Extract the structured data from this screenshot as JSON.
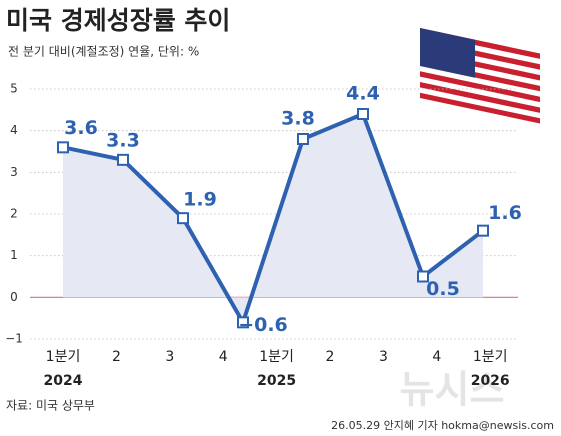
{
  "chart_data": {
    "type": "line",
    "title": "미국 경제성장률 추이",
    "subtitle": "전 분기 대비(계절조정) 연율, 단위: %",
    "x_axis_labels": [
      "1분기",
      "2",
      "3",
      "4",
      "1분기",
      "2",
      "3",
      "4",
      "1분기"
    ],
    "year_labels": [
      "2024",
      "2025",
      "2026"
    ],
    "values": [
      3.6,
      3.3,
      1.9,
      -0.6,
      3.8,
      4.4,
      0.5,
      1.6
    ],
    "value_labels": [
      "3.6",
      "3.3",
      "1.9",
      "−0.6",
      "3.8",
      "4.4",
      "0.5",
      "1.6"
    ],
    "color": "#2e62b0",
    "ylim": [
      -1,
      5
    ],
    "yticks": [
      {
        "value": -1,
        "label": "−1"
      },
      0,
      1,
      2,
      3,
      4,
      5
    ],
    "grid": true,
    "source": "자료: 미국 상무부",
    "credit": "26.05.29 안지혜 기자 hokma@newsis.com",
    "watermark": "뉴시스"
  }
}
